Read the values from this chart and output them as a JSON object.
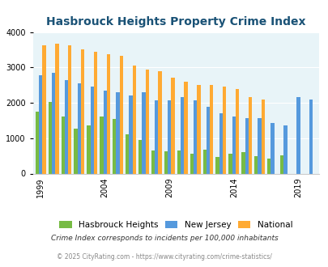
{
  "title": "Hasbrouck Heights Property Crime Index",
  "title_color": "#1a5276",
  "years": [
    1999,
    2000,
    2001,
    2002,
    2003,
    2004,
    2005,
    2006,
    2007,
    2008,
    2009,
    2010,
    2011,
    2012,
    2013,
    2014,
    2015,
    2016,
    2017,
    2018,
    2019,
    2020
  ],
  "hasbrouck": [
    1750,
    2020,
    1620,
    1270,
    1350,
    1620,
    1550,
    1120,
    950,
    650,
    620,
    650,
    560,
    670,
    480,
    550,
    600,
    500,
    430,
    520,
    0,
    0
  ],
  "nj": [
    2780,
    2840,
    2640,
    2540,
    2460,
    2340,
    2300,
    2200,
    2300,
    2080,
    2080,
    2150,
    2060,
    1890,
    1710,
    1620,
    1560,
    1560,
    1430,
    1360,
    2170,
    2100
  ],
  "national": [
    3620,
    3660,
    3620,
    3510,
    3450,
    3370,
    3320,
    3050,
    2940,
    2890,
    2720,
    2600,
    2500,
    2500,
    2460,
    2400,
    2170,
    2100,
    0,
    0,
    0,
    0
  ],
  "hasbrouck_color": "#77bb44",
  "nj_color": "#5599dd",
  "national_color": "#ffaa33",
  "bg_color": "#e8f4f8",
  "ylim": [
    0,
    4000
  ],
  "yticks": [
    0,
    1000,
    2000,
    3000,
    4000
  ],
  "xlabel_tick_years": [
    1999,
    2004,
    2009,
    2014,
    2019
  ],
  "legend_labels": [
    "Hasbrouck Heights",
    "New Jersey",
    "National"
  ],
  "footnote1": "Crime Index corresponds to incidents per 100,000 inhabitants",
  "footnote2": "© 2025 CityRating.com - https://www.cityrating.com/crime-statistics/",
  "footnote1_color": "#333333",
  "footnote2_color": "#888888"
}
